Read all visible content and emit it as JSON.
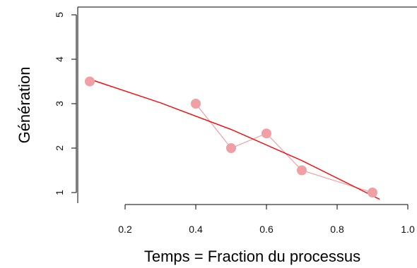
{
  "chart_data": {
    "type": "scatter",
    "title": "",
    "xlabel": "Temps = Fraction du processus",
    "ylabel": "Génération",
    "xlim": [
      0.1,
      1.0
    ],
    "ylim": [
      0.85,
      5.1
    ],
    "x_ticks": [
      0.2,
      0.4,
      0.6,
      0.8,
      1.0
    ],
    "x_tick_labels": [
      "0.2",
      "0.4",
      "0.6",
      "0.8",
      "1.0"
    ],
    "y_ticks": [
      1,
      2,
      3,
      4,
      5
    ],
    "y_tick_labels": [
      "1",
      "2",
      "3",
      "4",
      "5"
    ],
    "grid": false,
    "legend": "none",
    "series": [
      {
        "kind": "points",
        "x": [
          0.1,
          0.4,
          0.5,
          0.6,
          0.7,
          0.9
        ],
        "y": [
          3.5,
          3.0,
          2.0,
          2.33,
          1.5,
          1.0
        ],
        "color": "#f0a0a4"
      },
      {
        "kind": "connecting-line",
        "x": [
          0.4,
          0.5,
          0.6,
          0.7,
          0.9
        ],
        "y": [
          3.0,
          2.0,
          2.33,
          1.5,
          1.0
        ],
        "color": "#f0a0a4"
      },
      {
        "kind": "fitted-curve",
        "x": [
          0.1,
          0.3,
          0.5,
          0.7,
          0.92
        ],
        "y": [
          3.55,
          3.02,
          2.42,
          1.72,
          0.85
        ],
        "color": "#ff0000"
      }
    ]
  }
}
